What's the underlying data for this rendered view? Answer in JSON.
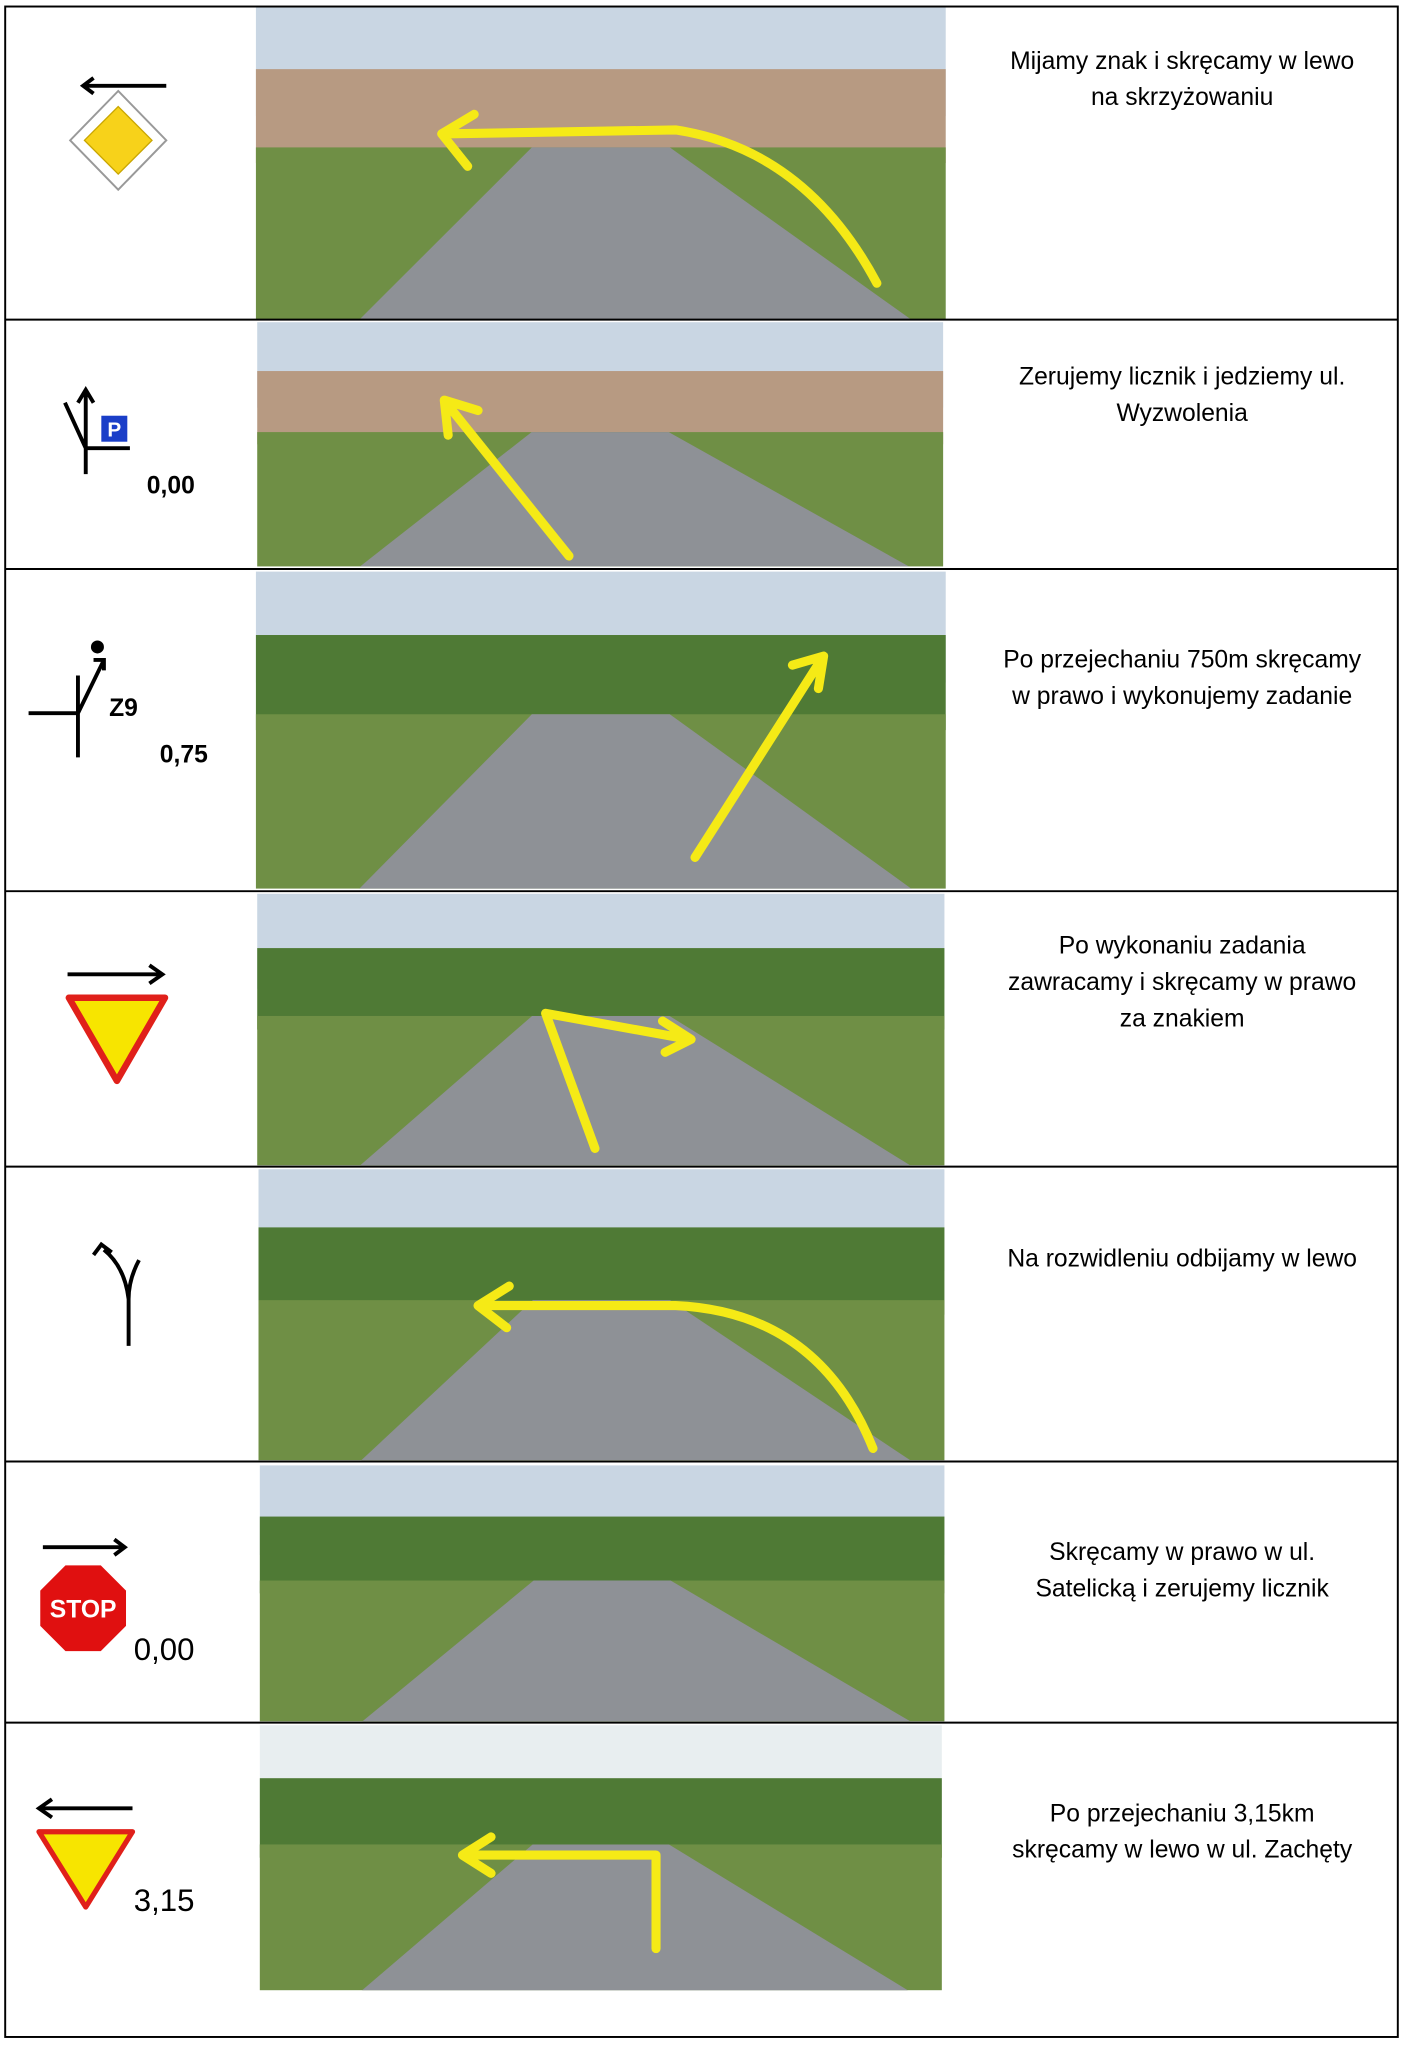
{
  "rows": [
    {
      "text": [
        "Mijamy znak i skręcamy w lewo",
        "na skrzyżowaniu"
      ]
    },
    {
      "label": "0,00",
      "text": [
        "Zerujemy licznik i jedziemy ul.",
        "Wyzwolenia"
      ]
    },
    {
      "code": "Z9",
      "label": "0,75",
      "text": [
        "Po przejechaniu 750m skręcamy",
        "w prawo i wykonujemy zadanie"
      ]
    },
    {
      "text": [
        "Po wykonaniu zadania",
        "zawracamy i skręcamy w prawo",
        "za znakiem"
      ]
    },
    {
      "text": [
        "Na rozwidleniu odbijamy w lewo"
      ]
    },
    {
      "sign": "STOP",
      "label": "0,00",
      "text": [
        "Skręcamy w prawo w ul.",
        "Satelicką i zerujemy licznik"
      ]
    },
    {
      "label": "3,15",
      "text": [
        "Po przejechaniu 3,15km",
        "skręcamy w lewo w ul. Zachęty"
      ]
    }
  ]
}
